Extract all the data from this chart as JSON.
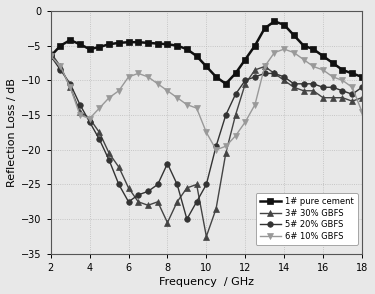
{
  "title": "",
  "xlabel": "Frequency  / GHz",
  "ylabel": "Reflection Loss / dB",
  "xlim": [
    2,
    18
  ],
  "ylim": [
    -35,
    0
  ],
  "xticks": [
    2,
    4,
    6,
    8,
    10,
    12,
    14,
    16,
    18
  ],
  "yticks": [
    0,
    -5,
    -10,
    -15,
    -20,
    -25,
    -30,
    -35
  ],
  "background_color": "#e8e8e8",
  "series": [
    {
      "label": "1# pure cement",
      "color": "#111111",
      "marker": "s",
      "markersize": 4,
      "linewidth": 1.8,
      "linestyle": "-",
      "x": [
        2.0,
        2.5,
        3.0,
        3.5,
        4.0,
        4.5,
        5.0,
        5.5,
        6.0,
        6.5,
        7.0,
        7.5,
        8.0,
        8.5,
        9.0,
        9.5,
        10.0,
        10.5,
        11.0,
        11.5,
        12.0,
        12.5,
        13.0,
        13.5,
        14.0,
        14.5,
        15.0,
        15.5,
        16.0,
        16.5,
        17.0,
        17.5,
        18.0
      ],
      "y": [
        -6.5,
        -5.0,
        -4.2,
        -4.8,
        -5.5,
        -5.2,
        -4.8,
        -4.6,
        -4.5,
        -4.5,
        -4.6,
        -4.7,
        -4.8,
        -5.0,
        -5.5,
        -6.5,
        -8.0,
        -9.5,
        -10.5,
        -9.0,
        -7.0,
        -5.0,
        -2.5,
        -1.5,
        -2.0,
        -3.5,
        -5.0,
        -5.5,
        -6.5,
        -7.5,
        -8.5,
        -9.0,
        -9.5
      ]
    },
    {
      "label": "3# 30% GBFS",
      "color": "#444444",
      "marker": "^",
      "markersize": 5,
      "linewidth": 1.0,
      "linestyle": "-",
      "x": [
        2.0,
        2.5,
        3.0,
        3.5,
        4.0,
        4.5,
        5.0,
        5.5,
        6.0,
        6.5,
        7.0,
        7.5,
        8.0,
        8.5,
        9.0,
        9.5,
        10.0,
        10.5,
        11.0,
        11.5,
        12.0,
        12.5,
        13.0,
        13.5,
        14.0,
        14.5,
        15.0,
        15.5,
        16.0,
        16.5,
        17.0,
        17.5,
        18.0
      ],
      "y": [
        -6.0,
        -8.0,
        -11.0,
        -14.5,
        -15.5,
        -17.5,
        -20.5,
        -22.5,
        -25.5,
        -27.5,
        -28.0,
        -27.5,
        -30.5,
        -27.5,
        -25.5,
        -25.0,
        -32.5,
        -28.5,
        -20.5,
        -15.0,
        -10.5,
        -8.5,
        -8.0,
        -9.0,
        -10.0,
        -11.0,
        -11.5,
        -11.5,
        -12.5,
        -12.5,
        -12.5,
        -13.0,
        -12.5
      ]
    },
    {
      "label": "5# 20% GBFS",
      "color": "#333333",
      "marker": "o",
      "markersize": 4,
      "linewidth": 1.0,
      "linestyle": "-",
      "x": [
        2.0,
        2.5,
        3.0,
        3.5,
        4.0,
        4.5,
        5.0,
        5.5,
        6.0,
        6.5,
        7.0,
        7.5,
        8.0,
        8.5,
        9.0,
        9.5,
        10.0,
        10.5,
        11.0,
        11.5,
        12.0,
        12.5,
        13.0,
        13.5,
        14.0,
        14.5,
        15.0,
        15.5,
        16.0,
        16.5,
        17.0,
        17.5,
        18.0
      ],
      "y": [
        -6.5,
        -8.5,
        -10.5,
        -13.5,
        -16.0,
        -18.5,
        -21.5,
        -25.0,
        -27.5,
        -26.5,
        -26.0,
        -25.0,
        -22.0,
        -25.0,
        -30.0,
        -27.5,
        -25.0,
        -19.5,
        -15.0,
        -12.0,
        -10.0,
        -9.5,
        -9.0,
        -9.0,
        -9.5,
        -10.5,
        -10.5,
        -10.5,
        -11.0,
        -11.0,
        -11.5,
        -12.0,
        -11.0
      ]
    },
    {
      "label": "6# 10% GBFS",
      "color": "#999999",
      "marker": "v",
      "markersize": 5,
      "linewidth": 1.0,
      "linestyle": "-",
      "x": [
        2.0,
        2.5,
        3.0,
        3.5,
        4.0,
        4.5,
        5.0,
        5.5,
        6.0,
        6.5,
        7.0,
        7.5,
        8.0,
        8.5,
        9.0,
        9.5,
        10.0,
        10.5,
        11.0,
        11.5,
        12.0,
        12.5,
        13.0,
        13.5,
        14.0,
        14.5,
        15.0,
        15.5,
        16.0,
        16.5,
        17.0,
        17.5,
        18.0
      ],
      "y": [
        -6.5,
        -8.0,
        -11.0,
        -15.0,
        -15.5,
        -14.0,
        -12.5,
        -11.5,
        -9.5,
        -9.0,
        -9.5,
        -10.5,
        -11.5,
        -12.5,
        -13.5,
        -14.0,
        -17.5,
        -20.0,
        -19.5,
        -18.0,
        -16.0,
        -13.5,
        -8.0,
        -6.0,
        -5.5,
        -6.0,
        -7.0,
        -8.0,
        -8.5,
        -9.5,
        -10.0,
        -11.0,
        -14.5
      ]
    }
  ],
  "grid": true,
  "grid_color": "#bbbbbb",
  "grid_linestyle": ":",
  "grid_linewidth": 0.6
}
